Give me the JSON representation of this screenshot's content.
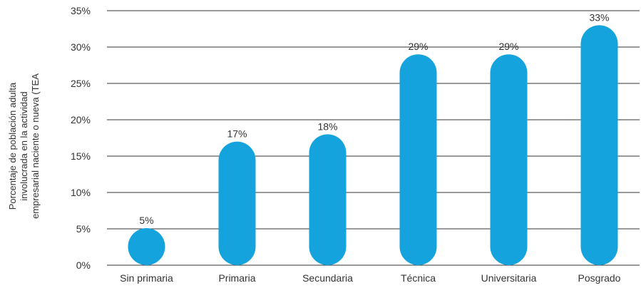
{
  "chart_data": {
    "type": "bar",
    "title": "",
    "xlabel": "",
    "ylabel_lines": [
      "Porcentaje de población adulta",
      "involucrada en la actividad",
      "empresarial naciente o nueva (TEA"
    ],
    "categories": [
      "Sin primaria",
      "Primaria",
      "Secundaria",
      "Técnica",
      "Universitaria",
      "Posgrado"
    ],
    "values": [
      5,
      17,
      18,
      29,
      29,
      33
    ],
    "value_labels": [
      "5%",
      "17%",
      "18%",
      "29%",
      "29%",
      "33%"
    ],
    "yticks": [
      0,
      5,
      10,
      15,
      20,
      25,
      30,
      35
    ],
    "ytick_labels": [
      "0%",
      "5%",
      "10%",
      "15%",
      "20%",
      "25%",
      "30%",
      "35%"
    ],
    "ylim": [
      0,
      35
    ],
    "grid": "horizontal",
    "bar_color": "#14a3dc",
    "grid_color": "#333333",
    "text_color": "#333333"
  }
}
